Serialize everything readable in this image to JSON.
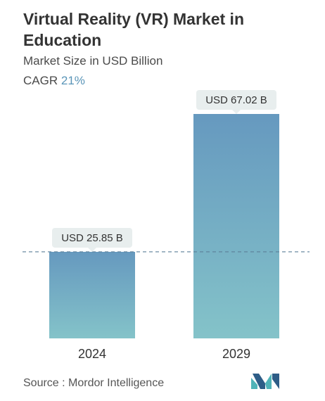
{
  "header": {
    "title": "Virtual Reality (VR) Market in Education",
    "subtitle": "Market Size in USD Billion",
    "cagr_label": "CAGR",
    "cagr_value": "21%"
  },
  "footer": {
    "source": "Source :  Mordor Intelligence"
  },
  "colors": {
    "bar_top": "#6699bf",
    "bar_bottom": "#84c3c9",
    "dashed_line": "#5b7f99",
    "label_box": "#e8eeee",
    "logo_dark": "#2e5d87",
    "logo_teal": "#4fb3b8"
  },
  "chart_data": {
    "type": "bar",
    "categories": [
      "2024",
      "2029"
    ],
    "values": [
      25.85,
      67.02
    ],
    "data_labels": [
      "USD 25.85 B",
      "USD 67.02 B"
    ],
    "ylim": [
      0,
      67.02
    ],
    "xlabel": "",
    "ylabel": "",
    "reference_line": 25.85,
    "grid": false
  }
}
